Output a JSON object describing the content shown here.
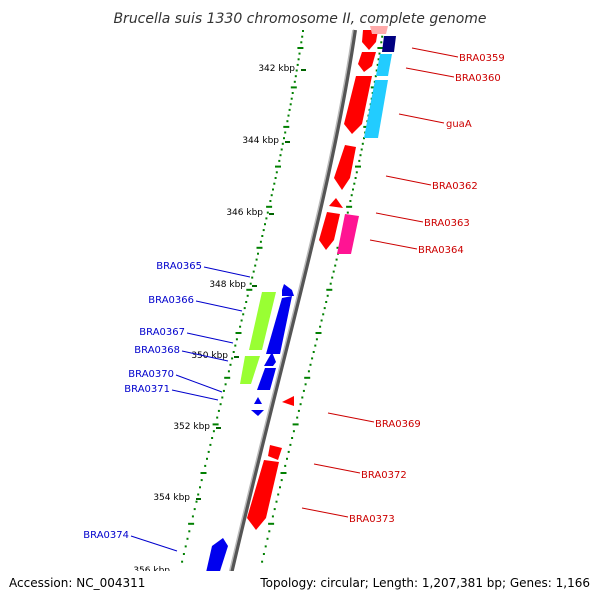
{
  "title": "Brucella suis 1330 chromosome II, complete genome",
  "footer": {
    "accession": "Accession: NC_004311",
    "summary": "Topology: circular; Length: 1,207,381 bp; Genes: 1,166"
  },
  "colors": {
    "backbone": "#808080",
    "forward_red": "#ff0000",
    "label_red": "#cc0000",
    "label_blue": "#0000cc",
    "reverse_blue": "#0000ee",
    "light_green": "#99ff33",
    "light_blue": "#22ccff",
    "navy": "#000080",
    "magenta": "#ff1493",
    "pink": "#ffaaaa",
    "gc_tick": "#008000"
  },
  "ticks": [
    "342 kbp",
    "344 kbp",
    "346 kbp",
    "348 kbp",
    "350 kbp",
    "352 kbp",
    "354 kbp",
    "356 kbp"
  ],
  "genes_right": [
    {
      "id": "BRA0359",
      "color_key": "label_red"
    },
    {
      "id": "BRA0360",
      "color_key": "label_red"
    },
    {
      "id": "guaA",
      "color_key": "label_red"
    },
    {
      "id": "BRA0362",
      "color_key": "label_red"
    },
    {
      "id": "BRA0363",
      "color_key": "label_red"
    },
    {
      "id": "BRA0364",
      "color_key": "label_red"
    },
    {
      "id": "BRA0369",
      "color_key": "label_red"
    },
    {
      "id": "BRA0372",
      "color_key": "label_red"
    },
    {
      "id": "BRA0373",
      "color_key": "label_red"
    }
  ],
  "genes_left": [
    {
      "id": "BRA0365",
      "color_key": "label_blue"
    },
    {
      "id": "BRA0366",
      "color_key": "label_blue"
    },
    {
      "id": "BRA0367",
      "color_key": "label_blue"
    },
    {
      "id": "BRA0368",
      "color_key": "label_blue"
    },
    {
      "id": "BRA0370",
      "color_key": "label_blue"
    },
    {
      "id": "BRA0371",
      "color_key": "label_blue"
    },
    {
      "id": "BRA0374",
      "color_key": "label_blue"
    }
  ]
}
